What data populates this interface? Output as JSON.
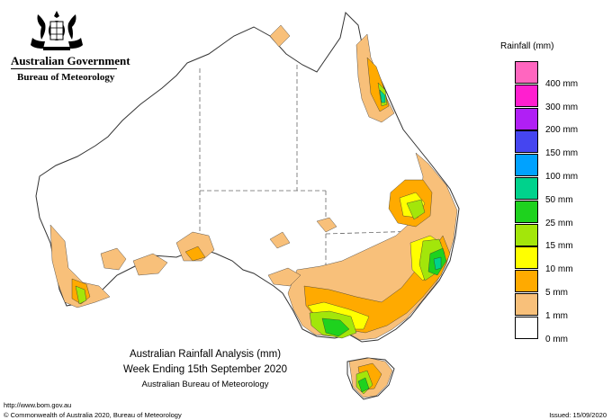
{
  "header": {
    "org_name": "Australian Government",
    "bureau_name": "Bureau of Meteorology",
    "logo_icon": "coat-of-arms-icon"
  },
  "legend": {
    "title": "Rainfall (mm)",
    "items": [
      {
        "label": "",
        "color": "#ff66bf"
      },
      {
        "label": "400 mm",
        "color": "#ff1fcf"
      },
      {
        "label": "300 mm",
        "color": "#b01ff5"
      },
      {
        "label": "200 mm",
        "color": "#4545f0"
      },
      {
        "label": "150 mm",
        "color": "#00a2ff"
      },
      {
        "label": "100 mm",
        "color": "#00d28c"
      },
      {
        "label": "50 mm",
        "color": "#1ed21e"
      },
      {
        "label": "25 mm",
        "color": "#a3e60a"
      },
      {
        "label": "15 mm",
        "color": "#ffff00"
      },
      {
        "label": "10 mm",
        "color": "#ffaa00"
      },
      {
        "label": "5 mm",
        "color": "#f8c07a"
      },
      {
        "label": "1 mm",
        "color": "#ffffff"
      },
      {
        "label": "0 mm",
        "color": ""
      }
    ]
  },
  "caption": {
    "line1": "Australian Rainfall Analysis (mm)",
    "line2": "Week Ending 15th September 2020",
    "line3": "Australian Bureau of Meteorology"
  },
  "footer": {
    "url": "http://www.bom.gov.au",
    "copyright": "© Commonwealth of Australia 2020, Bureau of Meteorology",
    "issued": "Issued: 15/09/2020"
  },
  "colors": {
    "land": "#ffffff",
    "outline": "#333333",
    "border": "#666666"
  }
}
